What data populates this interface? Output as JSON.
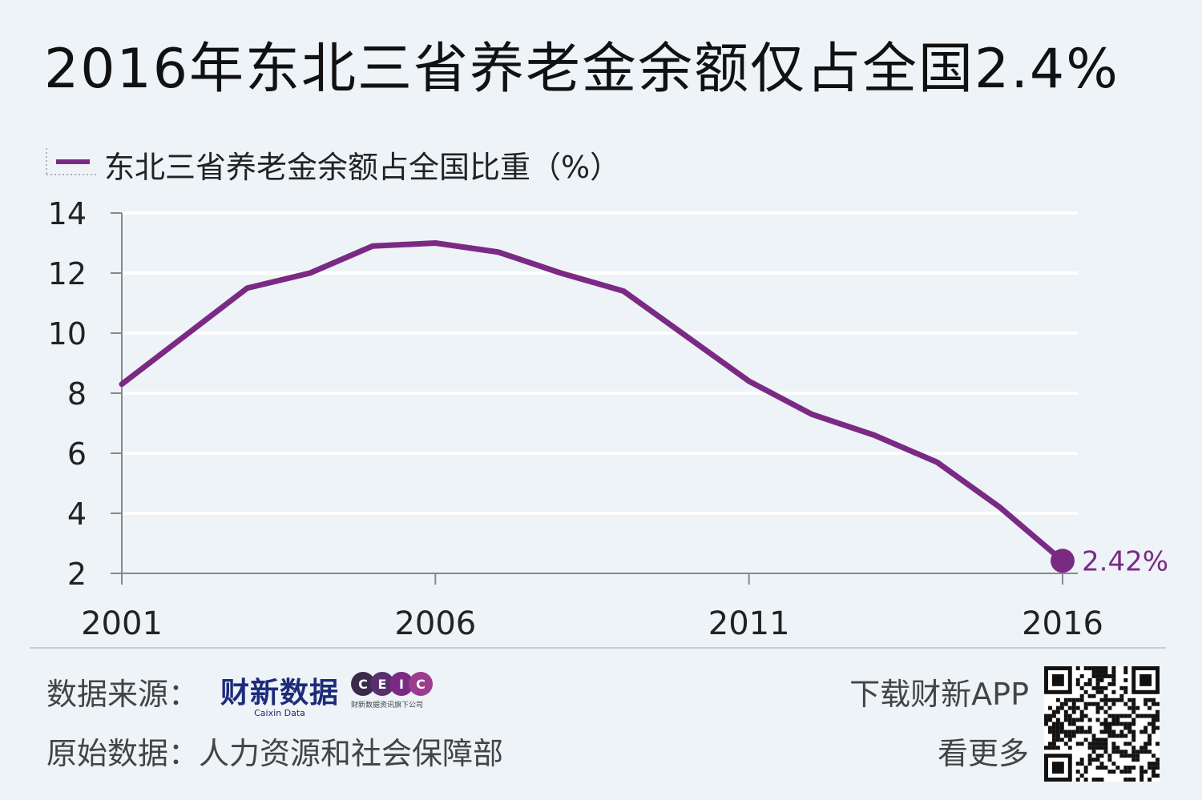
{
  "title": "2016年东北三省养老金余额仅占全国2.4%",
  "colors": {
    "series": "#7b2a84",
    "grid": "#ffffff",
    "axis": "#888888",
    "background": "#edf3f7"
  },
  "chart_data": {
    "type": "line",
    "title": "2016年东北三省养老金余额仅占全国2.4%",
    "x": [
      2001,
      2002,
      2003,
      2004,
      2005,
      2006,
      2007,
      2008,
      2009,
      2010,
      2011,
      2012,
      2013,
      2014,
      2015,
      2016
    ],
    "x_tick_labels": [
      "2001",
      "2006",
      "2011",
      "2016"
    ],
    "y_tick_labels": [
      "2",
      "4",
      "6",
      "8",
      "10",
      "12",
      "14"
    ],
    "ylim": [
      2,
      14
    ],
    "grid": true,
    "legend": "top-left",
    "series": [
      {
        "name": "东北三省养老金余额占全国比重（%）",
        "values": [
          8.3,
          9.9,
          11.5,
          12.0,
          12.9,
          13.0,
          12.7,
          12.0,
          11.4,
          9.9,
          8.4,
          7.3,
          6.6,
          5.7,
          4.2,
          2.42
        ]
      }
    ],
    "annotations": [
      {
        "x": 2016,
        "y": 2.42,
        "text": "2.42%"
      }
    ]
  },
  "footer": {
    "source_label": "数据来源：",
    "caixin_logo_cn": "财新数据",
    "caixin_logo_en": "Caixin Data",
    "ceic_letters": [
      "C",
      "E",
      "I",
      "C"
    ],
    "ceic_sub": "财新数据资讯旗下公司",
    "raw_label": "原始数据：",
    "raw_source": "人力资源和社会保障部",
    "app_line1": "下载财新APP",
    "app_line2": "看更多"
  }
}
